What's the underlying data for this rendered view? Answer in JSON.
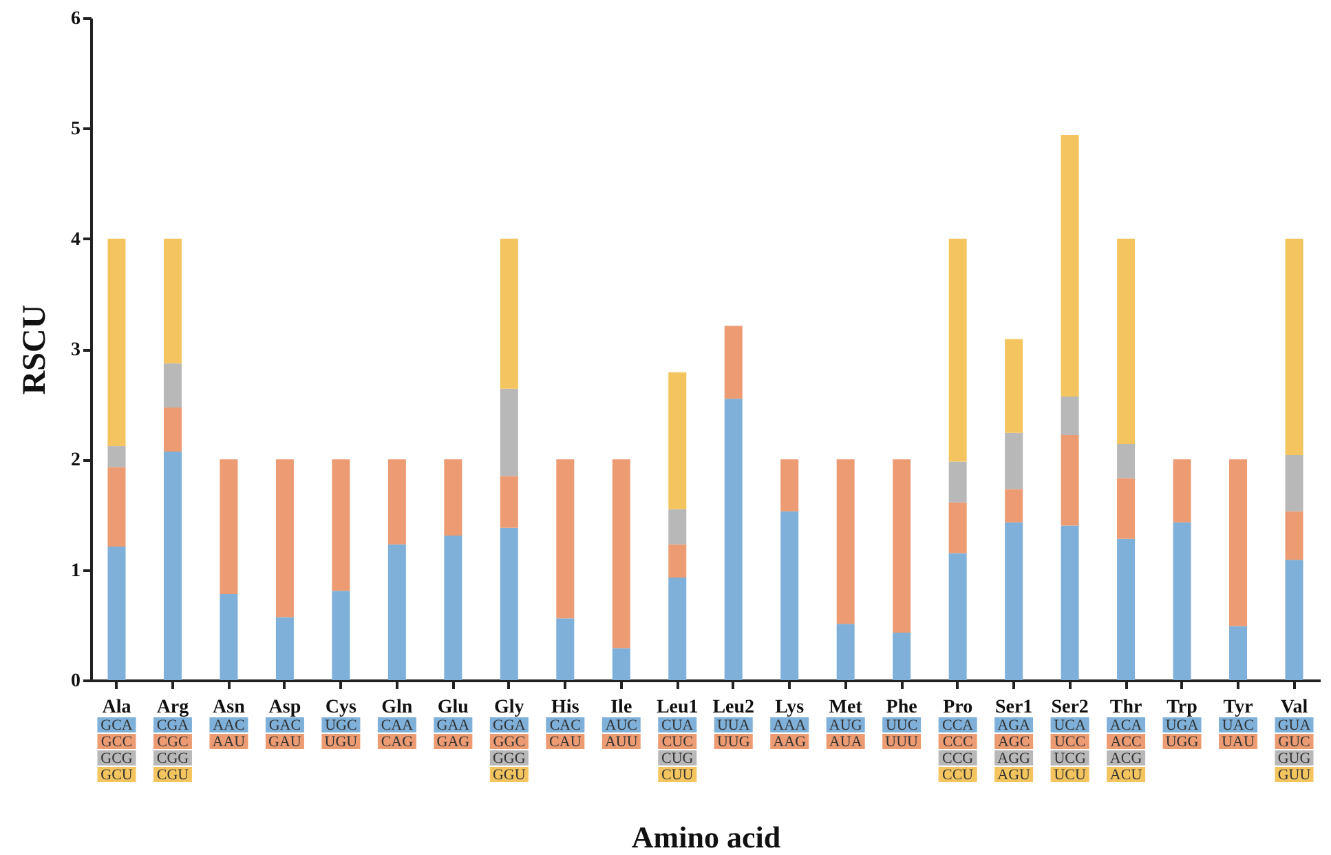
{
  "chart_data": {
    "type": "bar",
    "stacked": true,
    "xlabel": "Amino acid",
    "ylabel": "RSCU",
    "categories": [
      "Ala",
      "Arg",
      "Asn",
      "Asp",
      "Cys",
      "Gln",
      "Glu",
      "Gly",
      "His",
      "Ile",
      "Leu1",
      "Leu2",
      "Lys",
      "Met",
      "Phe",
      "Pro",
      "Ser1",
      "Ser2",
      "Thr",
      "Trp",
      "Tyr",
      "Val"
    ],
    "series": [
      {
        "color": "#7eb0d9",
        "values": [
          1.21,
          2.07,
          0.78,
          0.57,
          0.81,
          1.23,
          1.31,
          1.38,
          0.56,
          0.29,
          0.93,
          2.55,
          1.53,
          0.51,
          0.43,
          1.15,
          1.43,
          1.4,
          1.28,
          1.43,
          0.49,
          1.09
        ],
        "value_labels": [
          "GCA",
          "CGA",
          "AAC",
          "GAC",
          "UGC",
          "CAA",
          "GAA",
          "GGA",
          "CAC",
          "AUC",
          "CUA",
          "UUA",
          "AAA",
          "AUG",
          "UUC",
          "CCA",
          "AGA",
          "UCA",
          "ACA",
          "UGA",
          "UAC",
          "GUA"
        ]
      },
      {
        "color": "#ec9b72",
        "values": [
          0.72,
          0.4,
          1.22,
          1.43,
          1.19,
          0.77,
          0.69,
          0.47,
          1.44,
          1.71,
          0.3,
          0.66,
          0.47,
          1.49,
          1.57,
          0.46,
          0.3,
          0.82,
          0.55,
          0.57,
          1.51,
          0.44
        ],
        "value_labels": [
          "GCC",
          "CGC",
          "AAU",
          "GAU",
          "UGU",
          "CAG",
          "GAG",
          "GGC",
          "CAU",
          "AUU",
          "CUC",
          "UUG",
          "AAG",
          "AUA",
          "UUU",
          "CCC",
          "AGC",
          "UCC",
          "ACC",
          "UGG",
          "UAU",
          "GUC"
        ]
      },
      {
        "color": "#b8b8b8",
        "values": [
          0.19,
          0.4,
          null,
          null,
          null,
          null,
          null,
          0.79,
          null,
          null,
          0.32,
          null,
          null,
          null,
          null,
          0.37,
          0.51,
          0.35,
          0.31,
          null,
          null,
          0.51
        ],
        "value_labels": [
          "GCG",
          "CGG",
          null,
          null,
          null,
          null,
          null,
          "GGG",
          null,
          null,
          "CUG",
          null,
          null,
          null,
          null,
          "CCG",
          "AGG",
          "UCG",
          "ACG",
          null,
          null,
          "GUG"
        ]
      },
      {
        "color": "#f4c55e",
        "values": [
          1.88,
          1.13,
          null,
          null,
          null,
          null,
          null,
          1.36,
          null,
          null,
          1.24,
          null,
          null,
          null,
          null,
          2.02,
          0.85,
          2.37,
          1.86,
          null,
          null,
          1.96
        ],
        "value_labels": [
          "GCU",
          "CGU",
          null,
          null,
          null,
          null,
          null,
          "GGU",
          null,
          null,
          "CUU",
          null,
          null,
          null,
          null,
          "CCU",
          "AGU",
          "UCU",
          "ACU",
          null,
          null,
          "GUU"
        ]
      }
    ],
    "ylim": [
      0,
      6
    ],
    "yticks": [
      0,
      1,
      2,
      3,
      4,
      5,
      6
    ],
    "grid": false
  }
}
